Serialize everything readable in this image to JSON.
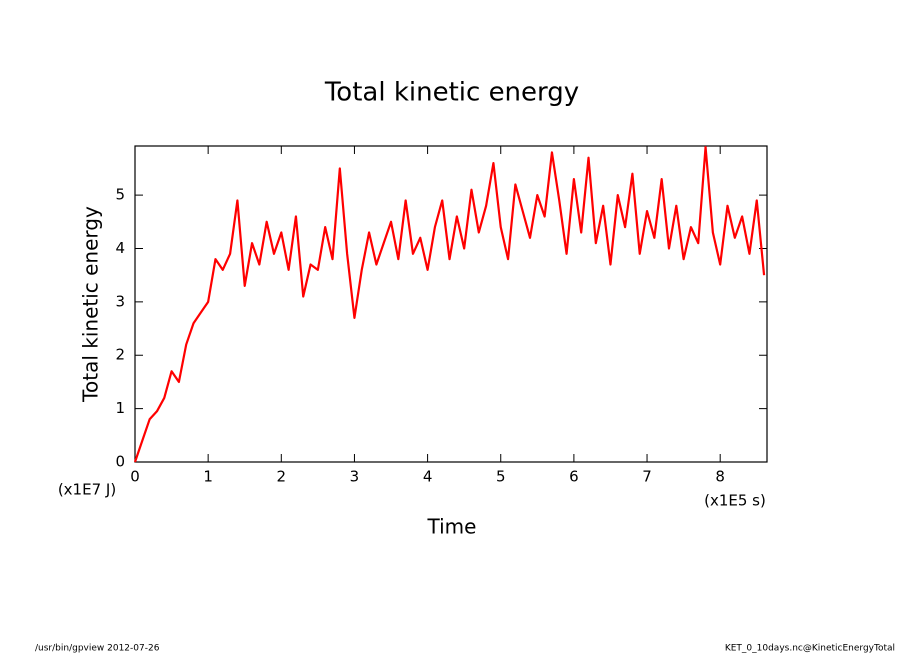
{
  "chart_data": {
    "type": "line",
    "title": "Total kinetic energy",
    "y_label": "Total kinetic energy",
    "x_label": "Time",
    "y_unit": "(x1E7 J)",
    "x_unit": "(x1E5 s)",
    "footer_left": "/usr/bin/gpview  2012-07-26",
    "footer_right": "KET_0_10days.nc@KineticEnergyTotal",
    "color": "#ff0000",
    "x": [
      0,
      0.1,
      0.2,
      0.3,
      0.4,
      0.5,
      0.6,
      0.7,
      0.8,
      0.9,
      1,
      1.1,
      1.2,
      1.3,
      1.4,
      1.5,
      1.6,
      1.7,
      1.8,
      1.9,
      2,
      2.1,
      2.2,
      2.3,
      2.4,
      2.5,
      2.6,
      2.7,
      2.8,
      2.9,
      3,
      3.1,
      3.2,
      3.3,
      3.4,
      3.5,
      3.6,
      3.7,
      3.8,
      3.9,
      4,
      4.1,
      4.2,
      4.3,
      4.4,
      4.5,
      4.6,
      4.7,
      4.8,
      4.9,
      5,
      5.1,
      5.2,
      5.3,
      5.4,
      5.5,
      5.6,
      5.7,
      5.8,
      5.9,
      6,
      6.1,
      6.2,
      6.3,
      6.4,
      6.5,
      6.6,
      6.7,
      6.8,
      6.9,
      7,
      7.1,
      7.2,
      7.3,
      7.4,
      7.5,
      7.6,
      7.7,
      7.8,
      7.9,
      8,
      8.1,
      8.2,
      8.3,
      8.4,
      8.5,
      8.6
    ],
    "values": [
      0,
      0.4,
      0.8,
      0.95,
      1.2,
      1.7,
      1.5,
      2.2,
      2.6,
      2.8,
      3.0,
      3.8,
      3.6,
      3.9,
      4.9,
      3.3,
      4.1,
      3.7,
      4.5,
      3.9,
      4.3,
      3.6,
      4.6,
      3.1,
      3.7,
      3.6,
      4.4,
      3.8,
      5.5,
      3.9,
      2.7,
      3.6,
      4.3,
      3.7,
      4.1,
      4.5,
      3.8,
      4.9,
      3.9,
      4.2,
      3.6,
      4.4,
      4.9,
      3.8,
      4.6,
      4.0,
      5.1,
      4.3,
      4.8,
      5.6,
      4.4,
      3.8,
      5.2,
      4.7,
      4.2,
      5.0,
      4.6,
      5.8,
      4.9,
      3.9,
      5.3,
      4.3,
      5.7,
      4.1,
      4.8,
      3.7,
      5.0,
      4.4,
      5.4,
      3.9,
      4.7,
      4.2,
      5.3,
      4.0,
      4.8,
      3.8,
      4.4,
      4.1,
      5.9,
      4.3,
      3.7,
      4.8,
      4.2,
      4.6,
      3.9,
      4.9,
      3.5
    ],
    "xlim": [
      0,
      8.64
    ],
    "ylim": [
      0,
      5.92
    ],
    "xticks": [
      0,
      1,
      2,
      3,
      4,
      5,
      6,
      7,
      8
    ],
    "yticks": [
      0,
      1,
      2,
      3,
      4,
      5
    ]
  }
}
